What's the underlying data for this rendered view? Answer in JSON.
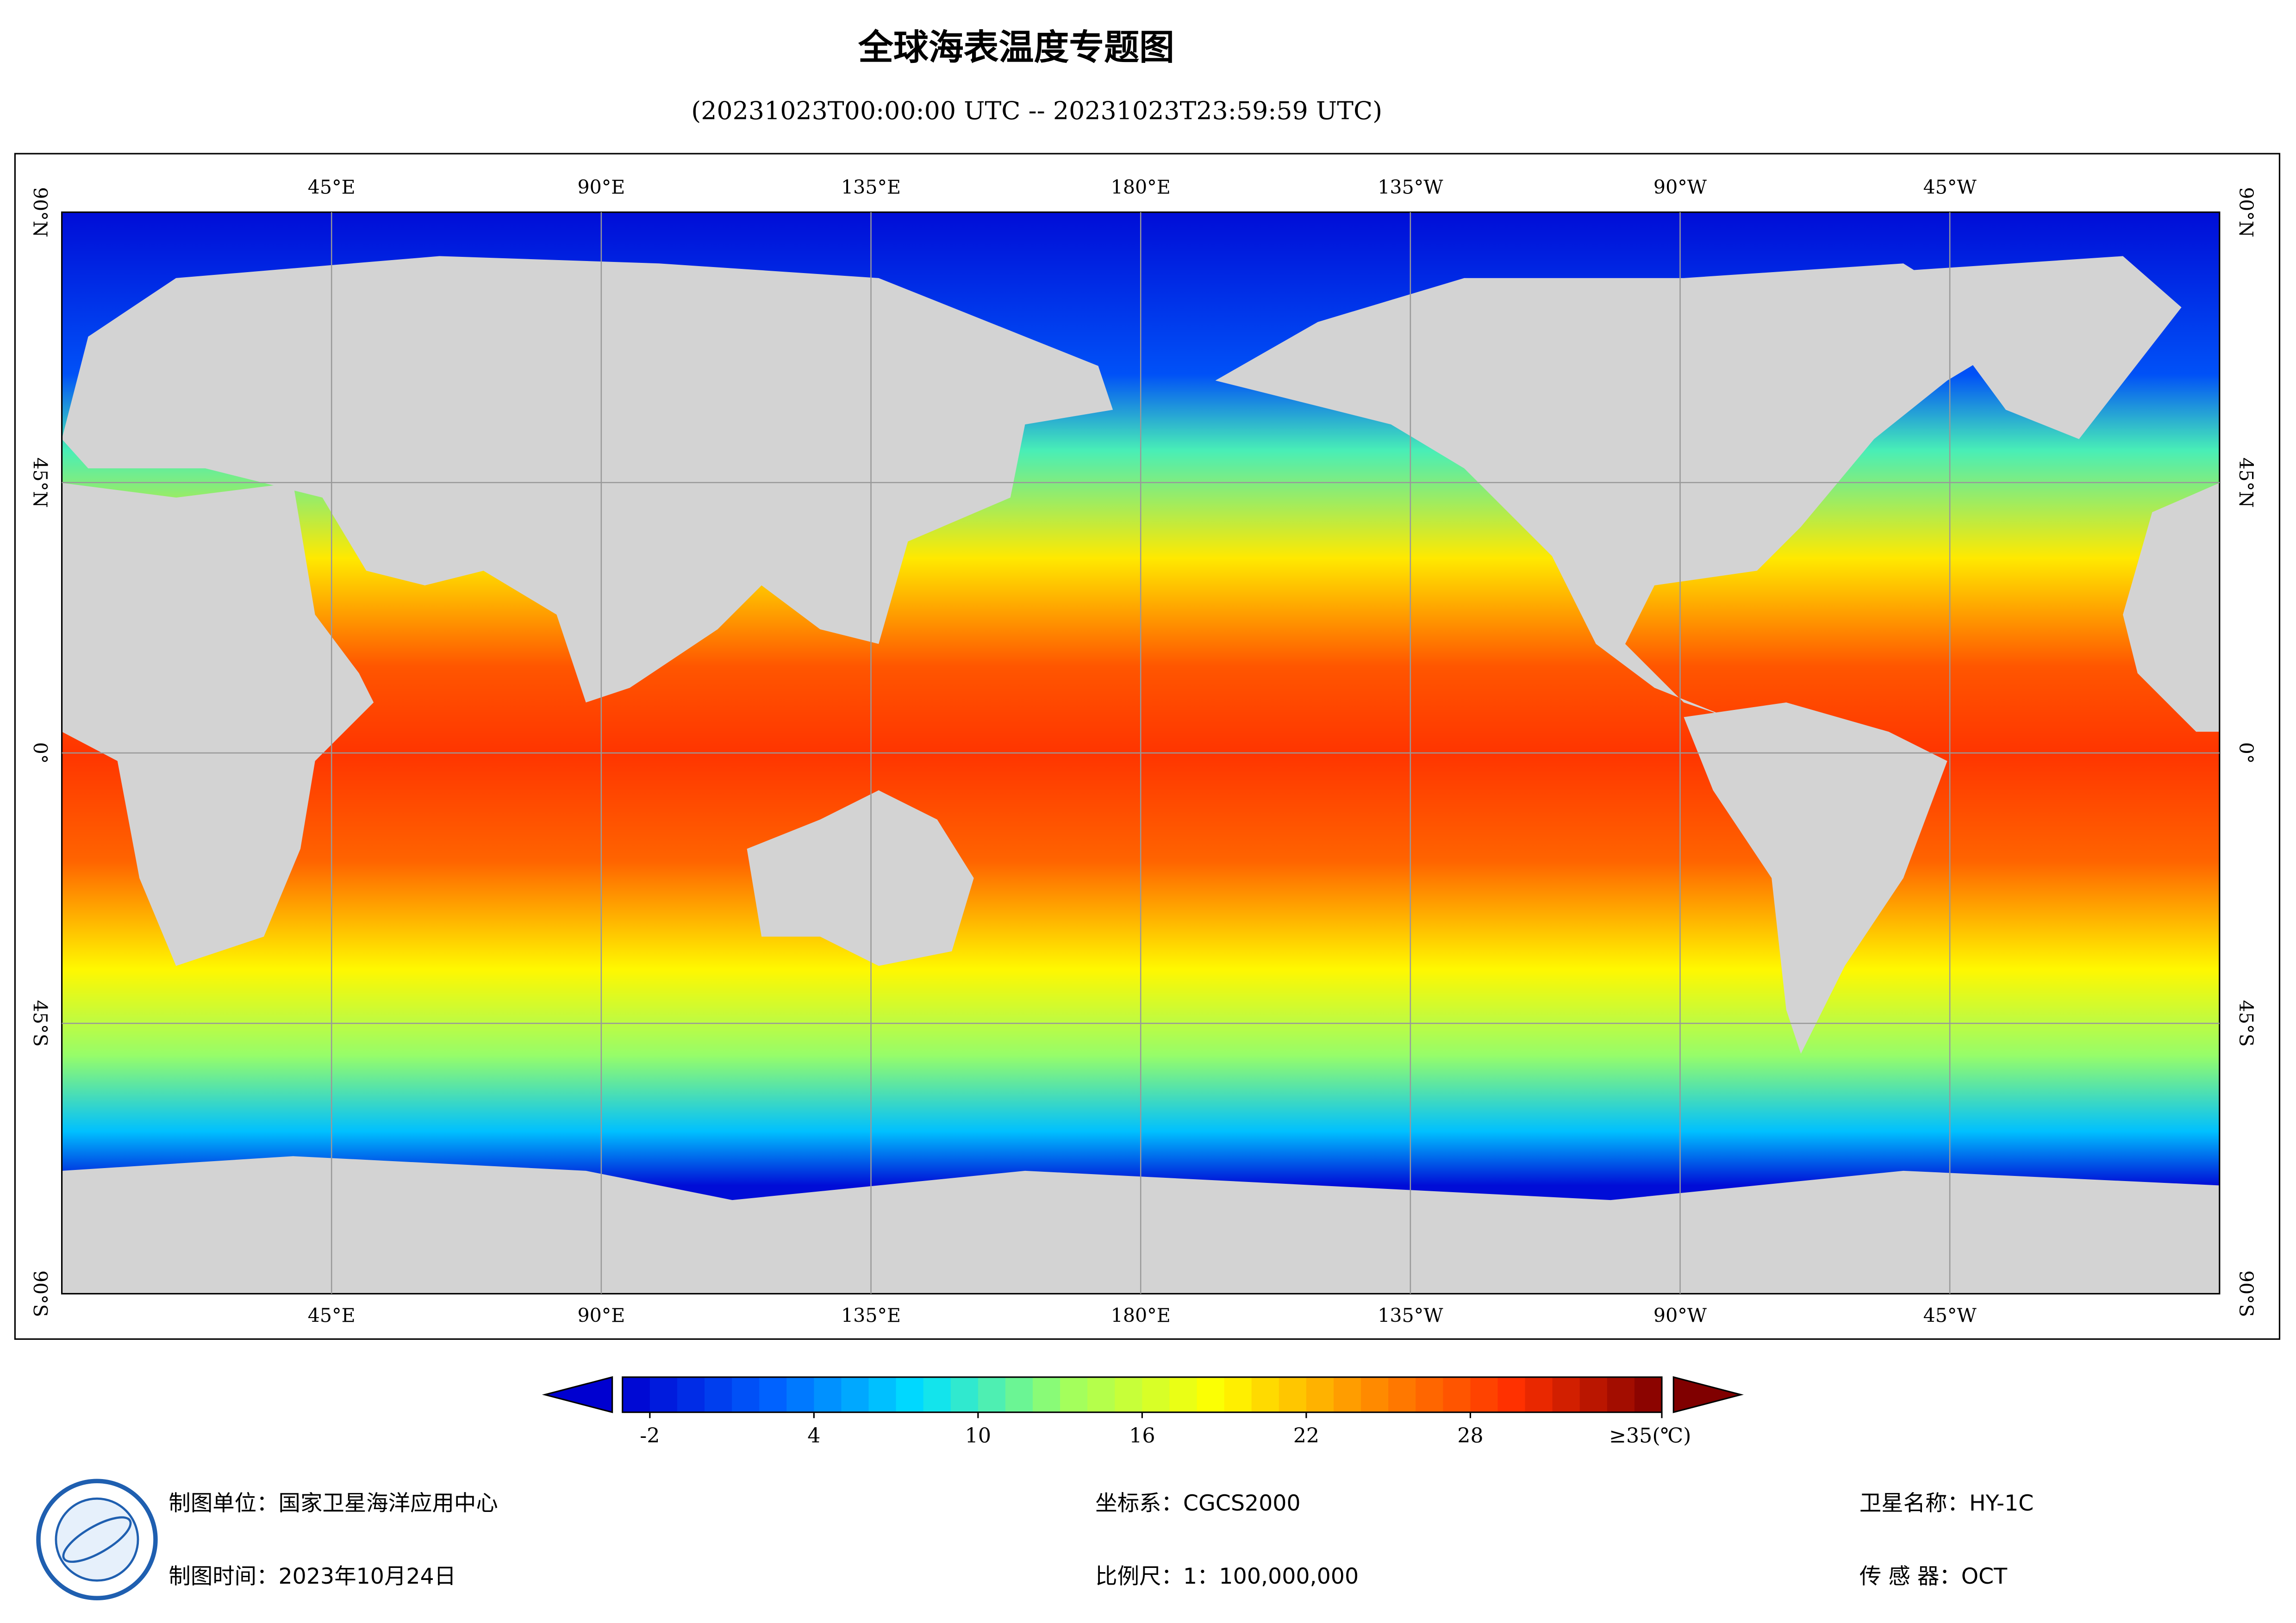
{
  "title": "全球海表温度专题图",
  "subtitle": "(20231023T00:00:00 UTC -- 20231023T23:59:59 UTC)",
  "map": {
    "type": "map",
    "lonlim": [
      0,
      360
    ],
    "latlim": [
      -90,
      90
    ],
    "grid": true,
    "land_color": "#d3d3d3",
    "lon_ticks": [
      {
        "value": 45,
        "label": "45°E"
      },
      {
        "value": 90,
        "label": "90°E"
      },
      {
        "value": 135,
        "label": "135°E"
      },
      {
        "value": 180,
        "label": "180°E"
      },
      {
        "value": 225,
        "label": "135°W"
      },
      {
        "value": 270,
        "label": "90°W"
      },
      {
        "value": 315,
        "label": "45°W"
      }
    ],
    "lat_ticks": [
      {
        "value": 90,
        "label": "90°N"
      },
      {
        "value": 45,
        "label": "45°N"
      },
      {
        "value": 0,
        "label": "0°"
      },
      {
        "value": -45,
        "label": "45°S"
      },
      {
        "value": -90,
        "label": "90°S"
      }
    ]
  },
  "colorbar": {
    "lim": [
      -3,
      35
    ],
    "ticks": [
      -2,
      4,
      10,
      16,
      22,
      28,
      {
        "value": 35,
        "label": "≥35(℃)"
      }
    ],
    "colors": [
      "#0000d0",
      "#0060ff",
      "#00e0ff",
      "#a0ff60",
      "#ffff00",
      "#ff9000",
      "#ff3000",
      "#800000"
    ]
  },
  "footer": {
    "unit": "制图单位：国家卫星海洋应用中心",
    "date": "制图时间：2023年10月24日",
    "crs": "坐标系：CGCS2000",
    "scale": "比例尺：1：100,000,000",
    "satellite": "卫星名称：HY-1C",
    "sensor": "传 感 器：OCT"
  }
}
